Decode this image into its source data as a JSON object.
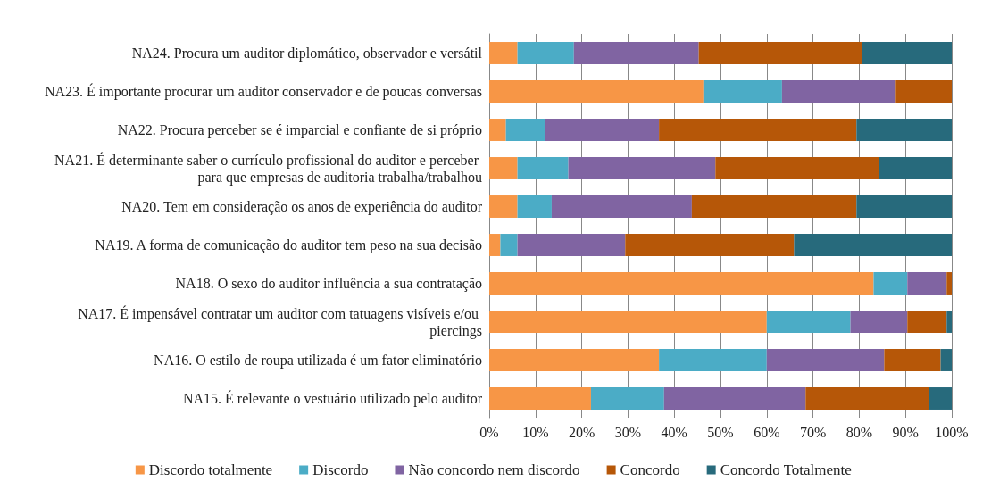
{
  "chart_data": {
    "type": "bar",
    "orientation": "horizontal",
    "stacked": true,
    "categories": [
      "NA24. Procura um auditor diplomático, observador e versátil",
      "NA23. É importante procurar um auditor conservador e de poucas conversas",
      "NA22. Procura perceber se é imparcial e confiante de si próprio",
      "NA21. É determinante saber o currículo profissional do auditor e perceber para que empresas de auditoria trabalha/trabalhou",
      "NA20. Tem em consideração os anos de experiência do auditor",
      "NA19. A forma de comunicação do auditor tem peso na sua decisão",
      "NA18. O sexo do auditor influência a sua contratação",
      "NA17. É impensável contratar um auditor com tatuagens visíveis e/ou piercings",
      "NA16. O estilo de roupa utilizada é um fator eliminatório",
      "NA15. É relevante o vestuário utilizado pelo auditor"
    ],
    "series": [
      {
        "name": "Discordo totalmente",
        "color": "#f79646",
        "values": [
          6.1,
          46.3,
          3.6,
          6.1,
          6.1,
          2.4,
          83.1,
          60.0,
          36.7,
          22.0
        ]
      },
      {
        "name": "Discordo",
        "color": "#4bacc6",
        "values": [
          12.2,
          17.0,
          8.5,
          11.0,
          7.4,
          3.7,
          7.3,
          18.1,
          23.3,
          15.8
        ]
      },
      {
        "name": "Não concordo nem discordo",
        "color": "#8064a2",
        "values": [
          27.0,
          24.6,
          24.6,
          31.8,
          30.3,
          23.3,
          8.5,
          12.3,
          25.4,
          30.6
        ]
      },
      {
        "name": "Concordo",
        "color": "#b65708",
        "values": [
          35.2,
          12.1,
          42.7,
          35.3,
          35.6,
          36.5,
          1.1,
          8.5,
          12.2,
          26.7
        ]
      },
      {
        "name": "Concordo Totalmente",
        "color": "#276a7c",
        "values": [
          19.5,
          0,
          20.6,
          15.8,
          20.6,
          34.1,
          0,
          1.1,
          2.4,
          4.9
        ]
      }
    ],
    "xlim": [
      0,
      100
    ],
    "xticks": [
      {
        "value": 0,
        "label": "0%"
      },
      {
        "value": 10,
        "label": "10%"
      },
      {
        "value": 20,
        "label": "20%"
      },
      {
        "value": 30,
        "label": "30%"
      },
      {
        "value": 40,
        "label": "40%"
      },
      {
        "value": 50,
        "label": "50%"
      },
      {
        "value": 60,
        "label": "60%"
      },
      {
        "value": 70,
        "label": "70%"
      },
      {
        "value": 80,
        "label": "80%"
      },
      {
        "value": 90,
        "label": "90%"
      },
      {
        "value": 100,
        "label": "100%"
      }
    ],
    "grid": "x",
    "legend": "bottom"
  }
}
